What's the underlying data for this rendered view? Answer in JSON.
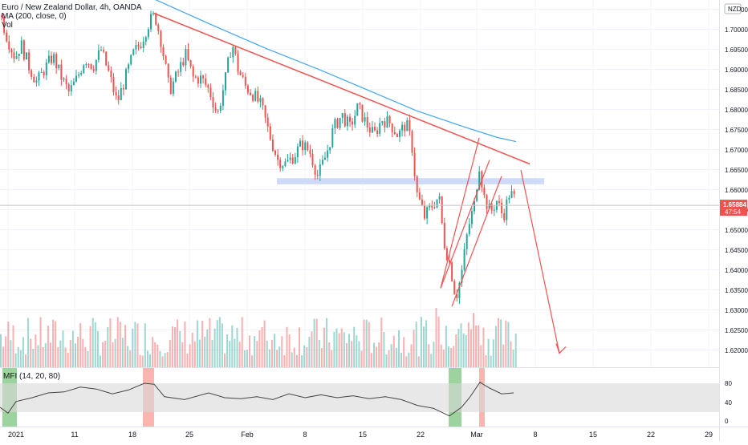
{
  "header": {
    "title": "Euro / New Zealand Dollar, 4h, OANDA",
    "ma_label": "MA (200, close, 0)",
    "vol_label": "Vol",
    "currency_badge": "NZD"
  },
  "price_axis": {
    "ticks": [
      "1.70500",
      "1.70000",
      "1.69500",
      "1.69000",
      "1.68500",
      "1.68000",
      "1.67500",
      "1.67000",
      "1.66500",
      "1.66000",
      "1.65500",
      "1.65000",
      "1.64500",
      "1.64000",
      "1.63500",
      "1.63000",
      "1.62500",
      "1.62000"
    ],
    "last_price": "1.65884",
    "countdown": "47:54"
  },
  "mfi_panel": {
    "label": "MFI (14, 20, 80)",
    "ticks": [
      "80",
      "40",
      "0"
    ],
    "upper_band": 80,
    "lower_band": 20
  },
  "time_axis": {
    "labels": [
      "2021",
      "11",
      "18",
      "25",
      "Feb",
      "8",
      "15",
      "22",
      "Mar",
      "8",
      "15",
      "22",
      "29"
    ]
  },
  "colors": {
    "up": "#26a69a",
    "down": "#ef5350",
    "ma_line": "#42a5f5",
    "trendline": "#ef5350",
    "support_zone": "#c5d3f7",
    "mfi_band": "#d9d9d9",
    "oversold_highlight": "#4caf50",
    "overbought_highlight": "#f44336",
    "price_badge": "#ef5350"
  },
  "chart_data": {
    "type": "candlestick",
    "title": "Euro / New Zealand Dollar, 4h, OANDA",
    "symbol": "EURNZD",
    "timeframe": "4h",
    "ylim": [
      1.6175,
      1.7075
    ],
    "last_price": 1.65884,
    "close_path": [
      [
        0,
        1.7055
      ],
      [
        8,
        1.7
      ],
      [
        18,
        1.695
      ],
      [
        25,
        1.6985
      ],
      [
        35,
        1.693
      ],
      [
        45,
        1.689
      ],
      [
        55,
        1.6925
      ],
      [
        65,
        1.6955
      ],
      [
        75,
        1.6905
      ],
      [
        85,
        1.6865
      ],
      [
        95,
        1.69
      ],
      [
        105,
        1.695
      ],
      [
        115,
        1.693
      ],
      [
        125,
        1.697
      ],
      [
        135,
        1.691
      ],
      [
        145,
        1.684
      ],
      [
        155,
        1.69
      ],
      [
        165,
        1.696
      ],
      [
        175,
        1.699
      ],
      [
        185,
        1.704
      ],
      [
        192,
        1.7055
      ],
      [
        200,
        1.699
      ],
      [
        210,
        1.687
      ],
      [
        220,
        1.691
      ],
      [
        230,
        1.696
      ],
      [
        240,
        1.69
      ],
      [
        250,
        1.69
      ],
      [
        260,
        1.687
      ],
      [
        270,
        1.681
      ],
      [
        280,
        1.69
      ],
      [
        288,
        1.699
      ],
      [
        296,
        1.692
      ],
      [
        305,
        1.688
      ],
      [
        315,
        1.686
      ],
      [
        325,
        1.683
      ],
      [
        335,
        1.676
      ],
      [
        345,
        1.67
      ],
      [
        355,
        1.669
      ],
      [
        365,
        1.671
      ],
      [
        375,
        1.674
      ],
      [
        385,
        1.672
      ],
      [
        395,
        1.666
      ],
      [
        405,
        1.671
      ],
      [
        415,
        1.678
      ],
      [
        425,
        1.681
      ],
      [
        435,
        1.678
      ],
      [
        445,
        1.683
      ],
      [
        455,
        1.679
      ],
      [
        465,
        1.676
      ],
      [
        475,
        1.68
      ],
      [
        485,
        1.679
      ],
      [
        495,
        1.676
      ],
      [
        505,
        1.679
      ],
      [
        512,
        1.674
      ],
      [
        518,
        1.662
      ],
      [
        528,
        1.656
      ],
      [
        538,
        1.659
      ],
      [
        546,
        1.661
      ],
      [
        552,
        1.65
      ],
      [
        560,
        1.644
      ],
      [
        567,
        1.636
      ],
      [
        574,
        1.642
      ],
      [
        582,
        1.653
      ],
      [
        590,
        1.659
      ],
      [
        596,
        1.669
      ],
      [
        602,
        1.661
      ],
      [
        610,
        1.657
      ],
      [
        618,
        1.66
      ],
      [
        626,
        1.656
      ],
      [
        634,
        1.662
      ],
      [
        642,
        1.66
      ]
    ],
    "ma_200": [
      [
        192,
        1.7095
      ],
      [
        260,
        1.7035
      ],
      [
        330,
        1.6975
      ],
      [
        400,
        1.692
      ],
      [
        460,
        1.687
      ],
      [
        520,
        1.682
      ],
      [
        580,
        1.678
      ],
      [
        620,
        1.6755
      ],
      [
        643,
        1.6745
      ]
    ],
    "volume_max_units": 100,
    "mfi_path": [
      [
        0,
        30
      ],
      [
        10,
        18
      ],
      [
        20,
        42
      ],
      [
        40,
        50
      ],
      [
        60,
        60
      ],
      [
        80,
        62
      ],
      [
        100,
        72
      ],
      [
        120,
        68
      ],
      [
        140,
        58
      ],
      [
        160,
        66
      ],
      [
        180,
        80
      ],
      [
        192,
        78
      ],
      [
        205,
        52
      ],
      [
        230,
        46
      ],
      [
        260,
        60
      ],
      [
        280,
        50
      ],
      [
        300,
        48
      ],
      [
        320,
        52
      ],
      [
        340,
        46
      ],
      [
        360,
        58
      ],
      [
        380,
        50
      ],
      [
        400,
        56
      ],
      [
        420,
        50
      ],
      [
        440,
        54
      ],
      [
        460,
        48
      ],
      [
        480,
        52
      ],
      [
        500,
        46
      ],
      [
        520,
        34
      ],
      [
        540,
        28
      ],
      [
        560,
        12
      ],
      [
        575,
        30
      ],
      [
        585,
        50
      ],
      [
        598,
        82
      ],
      [
        610,
        70
      ],
      [
        625,
        58
      ],
      [
        640,
        60
      ]
    ],
    "annotations": [
      {
        "type": "trendline",
        "from": [
          192,
          1.706
        ],
        "to": [
          660,
          1.669
        ]
      },
      {
        "type": "support_zone",
        "x": [
          345,
          678
        ],
        "y": [
          1.664,
          1.6655
        ]
      },
      {
        "type": "rising_channel",
        "lower": [
          [
            549,
            1.6385
          ],
          [
            610,
            1.67
          ]
        ],
        "upper": [
          [
            563,
            1.634
          ],
          [
            625,
            1.666
          ]
        ],
        "cap": [
          [
            549,
            1.6385
          ],
          [
            597,
            1.6754
          ]
        ]
      },
      {
        "type": "projection_arrow",
        "from": [
          649,
          1.6675
        ],
        "to": [
          697,
          1.6225
        ]
      }
    ]
  }
}
